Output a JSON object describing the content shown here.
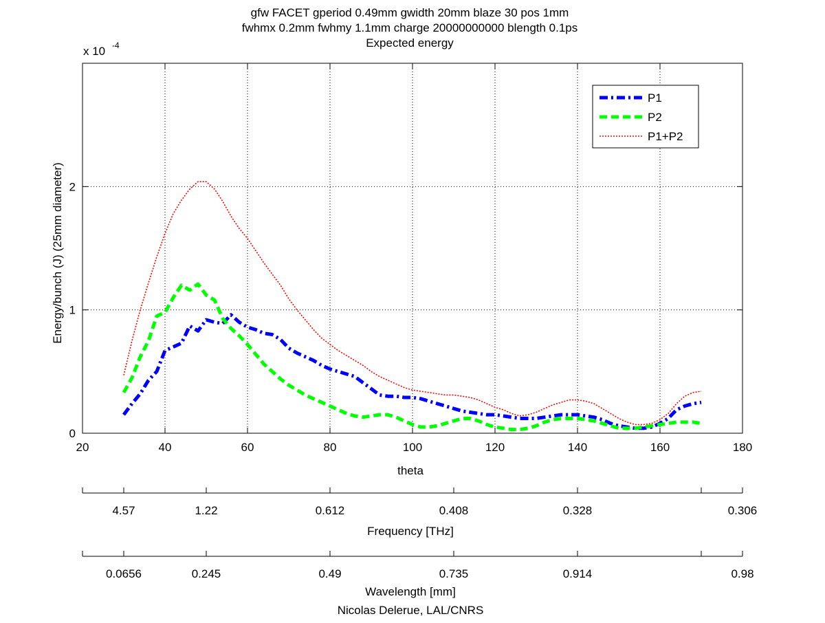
{
  "chart_data": {
    "type": "line",
    "title": [
      "gfw FACET gperiod 0.49mm gwidth 20mm blaze 30 pos 1mm",
      "fwhmx 0.2mm fwhmy 1.1mm charge 20000000000 blength 0.1ps",
      "Expected energy"
    ],
    "xlabel": "theta",
    "ylabel": "Energy/bunch (J) (25mm diameter)",
    "y_exponent_label": {
      "base": "x 10",
      "exponent": "-4"
    },
    "xlim": [
      20,
      180
    ],
    "ylim": [
      0,
      3.0
    ],
    "y_scale_factor": 0.0001,
    "x_ticks": [
      20,
      40,
      60,
      80,
      100,
      120,
      140,
      160,
      180
    ],
    "y_ticks": [
      0,
      1,
      2
    ],
    "grid": true,
    "legend_position": "top-right",
    "series": [
      {
        "name": "P1",
        "color": "#0000ff",
        "style": "dash-dot",
        "x": [
          30,
          32,
          34,
          36,
          38,
          40,
          42,
          44,
          46,
          48,
          50,
          52,
          54,
          56,
          58,
          60,
          62,
          64,
          66,
          68,
          70,
          72,
          74,
          76,
          78,
          80,
          82,
          84,
          86,
          88,
          90,
          92,
          94,
          96,
          98,
          100,
          102,
          104,
          106,
          108,
          110,
          112,
          114,
          116,
          118,
          120,
          122,
          124,
          126,
          128,
          130,
          132,
          134,
          136,
          138,
          140,
          142,
          144,
          146,
          148,
          150,
          152,
          154,
          156,
          158,
          160,
          162,
          164,
          166,
          168,
          170
        ],
        "y": [
          0.15,
          0.24,
          0.32,
          0.43,
          0.5,
          0.67,
          0.7,
          0.73,
          0.87,
          0.83,
          0.92,
          0.9,
          0.89,
          0.96,
          0.9,
          0.86,
          0.84,
          0.81,
          0.8,
          0.76,
          0.69,
          0.65,
          0.62,
          0.59,
          0.55,
          0.52,
          0.5,
          0.48,
          0.46,
          0.41,
          0.36,
          0.31,
          0.3,
          0.3,
          0.29,
          0.29,
          0.28,
          0.26,
          0.24,
          0.22,
          0.2,
          0.18,
          0.17,
          0.16,
          0.15,
          0.15,
          0.14,
          0.13,
          0.12,
          0.12,
          0.12,
          0.13,
          0.14,
          0.15,
          0.15,
          0.15,
          0.14,
          0.13,
          0.11,
          0.08,
          0.06,
          0.05,
          0.04,
          0.04,
          0.05,
          0.08,
          0.12,
          0.19,
          0.22,
          0.24,
          0.25
        ]
      },
      {
        "name": "P2",
        "color": "#00ff00",
        "style": "dashed",
        "x": [
          30,
          32,
          34,
          36,
          38,
          40,
          42,
          44,
          46,
          48,
          50,
          52,
          54,
          56,
          58,
          60,
          62,
          64,
          66,
          68,
          70,
          72,
          74,
          76,
          78,
          80,
          82,
          84,
          86,
          88,
          90,
          92,
          94,
          96,
          98,
          100,
          102,
          104,
          106,
          108,
          110,
          112,
          114,
          116,
          118,
          120,
          122,
          124,
          126,
          128,
          130,
          132,
          134,
          136,
          138,
          140,
          142,
          144,
          146,
          148,
          150,
          152,
          154,
          156,
          158,
          160,
          162,
          164,
          166,
          168,
          170
        ],
        "y": [
          0.33,
          0.45,
          0.62,
          0.75,
          0.95,
          0.98,
          1.1,
          1.2,
          1.16,
          1.21,
          1.12,
          1.08,
          0.93,
          0.85,
          0.79,
          0.72,
          0.64,
          0.56,
          0.5,
          0.44,
          0.39,
          0.35,
          0.31,
          0.28,
          0.25,
          0.22,
          0.19,
          0.16,
          0.14,
          0.13,
          0.14,
          0.15,
          0.15,
          0.13,
          0.1,
          0.07,
          0.05,
          0.05,
          0.06,
          0.08,
          0.1,
          0.12,
          0.12,
          0.1,
          0.07,
          0.05,
          0.04,
          0.03,
          0.03,
          0.04,
          0.06,
          0.09,
          0.11,
          0.12,
          0.12,
          0.12,
          0.11,
          0.1,
          0.08,
          0.06,
          0.04,
          0.04,
          0.04,
          0.05,
          0.06,
          0.07,
          0.08,
          0.09,
          0.09,
          0.09,
          0.08
        ]
      },
      {
        "name": "P1+P2",
        "color": "#ff0000",
        "style": "dotted",
        "x": [
          30,
          32,
          34,
          36,
          38,
          40,
          42,
          44,
          46,
          48,
          50,
          52,
          54,
          56,
          58,
          60,
          62,
          64,
          66,
          68,
          70,
          72,
          74,
          76,
          78,
          80,
          82,
          84,
          86,
          88,
          90,
          92,
          94,
          96,
          98,
          100,
          102,
          104,
          106,
          108,
          110,
          112,
          114,
          116,
          118,
          120,
          122,
          124,
          126,
          128,
          130,
          132,
          134,
          136,
          138,
          140,
          142,
          144,
          146,
          148,
          150,
          152,
          154,
          156,
          158,
          160,
          162,
          164,
          166,
          168,
          170
        ],
        "y": [
          0.47,
          0.75,
          1.0,
          1.22,
          1.43,
          1.62,
          1.78,
          1.89,
          1.98,
          2.04,
          2.04,
          1.98,
          1.88,
          1.76,
          1.66,
          1.58,
          1.48,
          1.38,
          1.29,
          1.2,
          1.09,
          1.0,
          0.92,
          0.84,
          0.77,
          0.72,
          0.67,
          0.63,
          0.59,
          0.55,
          0.5,
          0.46,
          0.43,
          0.4,
          0.37,
          0.35,
          0.34,
          0.33,
          0.32,
          0.31,
          0.31,
          0.3,
          0.29,
          0.27,
          0.24,
          0.21,
          0.19,
          0.16,
          0.14,
          0.15,
          0.17,
          0.2,
          0.23,
          0.25,
          0.27,
          0.27,
          0.26,
          0.24,
          0.2,
          0.16,
          0.12,
          0.09,
          0.07,
          0.07,
          0.08,
          0.11,
          0.16,
          0.24,
          0.3,
          0.33,
          0.34
        ]
      }
    ],
    "secondary_axes": [
      {
        "name": "frequency",
        "label": "Frequency [THz]",
        "tick_positions_theta": [
          30,
          50,
          80,
          110,
          140,
          170
        ],
        "tick_labels": [
          "4.57",
          "1.22",
          "0.612",
          "0.408",
          "0.328",
          "0.306"
        ]
      },
      {
        "name": "wavelength",
        "label": "Wavelength [mm]",
        "tick_positions_theta": [
          30,
          50,
          80,
          110,
          140,
          170
        ],
        "tick_labels": [
          "0.0656",
          "0.245",
          "0.49",
          "0.735",
          "0.914",
          "0.98"
        ]
      }
    ],
    "footer": "Nicolas Delerue, LAL/CNRS"
  }
}
